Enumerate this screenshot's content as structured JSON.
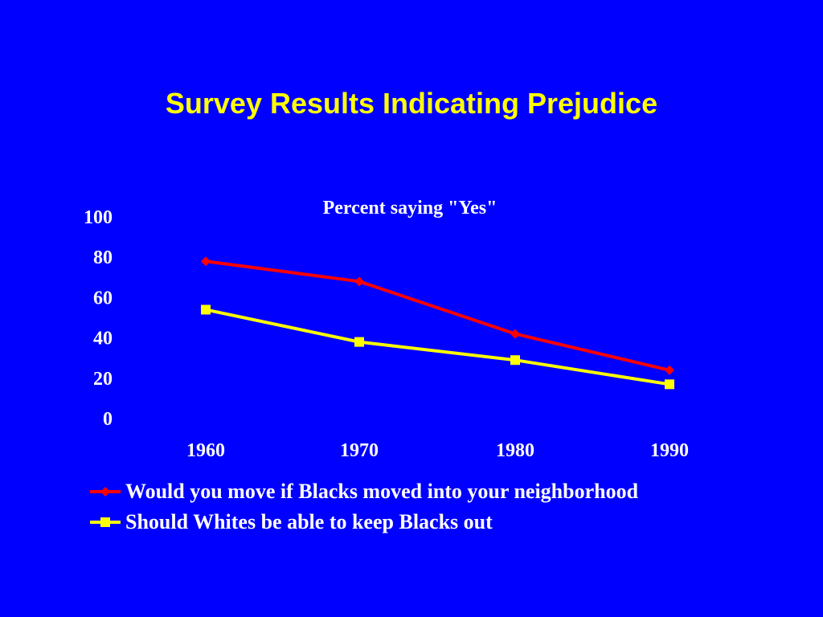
{
  "slide": {
    "title": "Survey Results Indicating Prejudice"
  },
  "colors": {
    "background": "#0000ff",
    "title": "#ffff00",
    "text": "#ffffff"
  },
  "chart_data": {
    "type": "line",
    "title": "Percent saying \"Yes\"",
    "xlabel": "",
    "ylabel": "",
    "x": [
      "1960",
      "1970",
      "1980",
      "1990"
    ],
    "ylim": [
      0,
      100
    ],
    "yticks": [
      "0",
      "20",
      "40",
      "60",
      "80",
      "100"
    ],
    "grid": false,
    "legend_position": "bottom",
    "series": [
      {
        "name": "Would you move if Blacks moved into your neighborhood",
        "values": [
          78,
          68,
          42,
          24
        ],
        "color": "#ff0000",
        "marker": "diamond"
      },
      {
        "name": "Should Whites be able to keep Blacks out",
        "values": [
          54,
          38,
          29,
          17
        ],
        "color": "#ffff00",
        "marker": "square"
      }
    ]
  }
}
